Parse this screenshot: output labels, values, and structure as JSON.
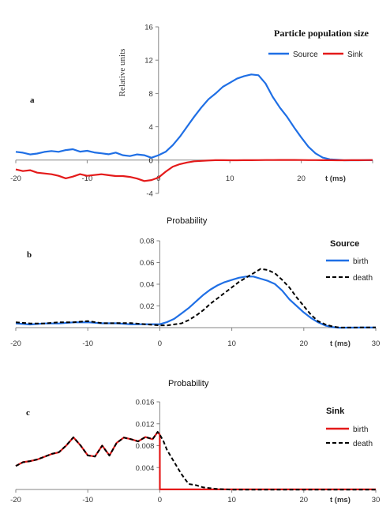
{
  "chart_data": [
    {
      "panel_label": "a",
      "type": "line",
      "title": "Particle population  size",
      "ylabel": "Relative  units",
      "xlabel": "t (ms)",
      "xlim": [
        -20,
        30
      ],
      "ylim": [
        -4,
        16
      ],
      "x_ticks": [
        -20,
        -10,
        0,
        10,
        20,
        30
      ],
      "x_tick_labels": [
        "-20",
        "-10",
        "0",
        "10",
        "20",
        ""
      ],
      "y_ticks": [
        -4,
        0,
        4,
        8,
        12,
        16
      ],
      "legend_position": "top-right",
      "series": [
        {
          "name": "Source",
          "color": "#1f6fe5",
          "style": "solid",
          "x": [
            -20,
            -19,
            -18,
            -17,
            -16,
            -15,
            -14,
            -13,
            -12,
            -11,
            -10,
            -9,
            -8,
            -7,
            -6,
            -5,
            -4,
            -3,
            -2,
            -1,
            0,
            1,
            2,
            3,
            4,
            5,
            6,
            7,
            8,
            9,
            10,
            11,
            12,
            13,
            14,
            15,
            16,
            17,
            18,
            19,
            20,
            21,
            22,
            23,
            24,
            25,
            26,
            27,
            28,
            29,
            30
          ],
          "values": [
            1.0,
            0.9,
            0.7,
            0.8,
            1.0,
            1.1,
            1.0,
            1.2,
            1.3,
            1.0,
            1.1,
            0.9,
            0.8,
            0.7,
            0.9,
            0.6,
            0.5,
            0.7,
            0.6,
            0.3,
            0.6,
            1.0,
            1.8,
            2.8,
            4.0,
            5.2,
            6.3,
            7.3,
            8.0,
            8.8,
            9.3,
            9.8,
            10.1,
            10.3,
            10.2,
            9.2,
            7.6,
            6.3,
            5.2,
            3.9,
            2.7,
            1.6,
            0.8,
            0.3,
            0.1,
            0.05,
            0.0,
            0.0,
            0.0,
            0.0,
            0.0
          ]
        },
        {
          "name": "Sink",
          "color": "#e41a1a",
          "style": "solid",
          "x": [
            -20,
            -19,
            -18,
            -17,
            -16,
            -15,
            -14,
            -13,
            -12,
            -11,
            -10,
            -9,
            -8,
            -7,
            -6,
            -5,
            -4,
            -3,
            -2,
            -1,
            0,
            1,
            2,
            3,
            4,
            5,
            6,
            7,
            8,
            9,
            10,
            11,
            12,
            13,
            14,
            15,
            16,
            17,
            18,
            19,
            20,
            21,
            22,
            23,
            24,
            25,
            26,
            27,
            28,
            29,
            30
          ],
          "values": [
            -1.1,
            -1.3,
            -1.2,
            -1.5,
            -1.6,
            -1.7,
            -1.9,
            -2.2,
            -2.0,
            -1.7,
            -1.9,
            -1.8,
            -1.7,
            -1.8,
            -1.9,
            -1.9,
            -2.0,
            -2.2,
            -2.5,
            -2.4,
            -2.1,
            -1.4,
            -0.8,
            -0.5,
            -0.3,
            -0.15,
            -0.1,
            -0.05,
            0,
            0,
            0,
            0,
            0,
            0,
            0,
            0,
            0,
            0,
            0,
            0,
            0,
            0,
            0,
            0,
            0,
            0,
            0,
            0,
            0,
            0,
            0
          ]
        }
      ]
    },
    {
      "panel_label": "b",
      "type": "line",
      "title": "Probability",
      "legend_title": "Source",
      "xlabel": "t (ms)",
      "xlim": [
        -20,
        30
      ],
      "ylim": [
        0,
        0.08
      ],
      "x_ticks": [
        -20,
        -10,
        0,
        10,
        20,
        30
      ],
      "x_tick_labels": [
        "-20",
        "-10",
        "0",
        "10",
        "20",
        "30"
      ],
      "y_ticks": [
        0.02,
        0.04,
        0.06,
        0.08
      ],
      "y_tick_labels": [
        "0.02",
        "0.04",
        "0.06",
        "0.08"
      ],
      "legend_position": "right",
      "series": [
        {
          "name": "birth",
          "color": "#1f6fe5",
          "style": "solid",
          "x": [
            -20,
            -18,
            -16,
            -14,
            -12,
            -10,
            -8,
            -6,
            -4,
            -2,
            0,
            1,
            2,
            3,
            4,
            5,
            6,
            7,
            8,
            9,
            10,
            11,
            12,
            13,
            14,
            15,
            16,
            17,
            18,
            19,
            20,
            21,
            22,
            23,
            24,
            25,
            26,
            28,
            30
          ],
          "values": [
            0.004,
            0.003,
            0.004,
            0.004,
            0.005,
            0.005,
            0.004,
            0.004,
            0.003,
            0.003,
            0.003,
            0.005,
            0.008,
            0.013,
            0.018,
            0.024,
            0.03,
            0.035,
            0.039,
            0.042,
            0.044,
            0.046,
            0.047,
            0.047,
            0.045,
            0.043,
            0.04,
            0.034,
            0.026,
            0.02,
            0.014,
            0.009,
            0.005,
            0.002,
            0.0005,
            0,
            0,
            0,
            0
          ]
        },
        {
          "name": "death",
          "color": "#000000",
          "style": "dashed",
          "x": [
            -20,
            -18,
            -16,
            -14,
            -12,
            -10,
            -8,
            -6,
            -4,
            -2,
            0,
            1,
            2,
            3,
            4,
            5,
            6,
            7,
            8,
            9,
            10,
            11,
            12,
            13,
            14,
            15,
            16,
            17,
            18,
            19,
            20,
            21,
            22,
            23,
            24,
            25,
            26,
            28,
            30
          ],
          "values": [
            0.005,
            0.004,
            0.004,
            0.005,
            0.005,
            0.006,
            0.004,
            0.004,
            0.004,
            0.003,
            0.002,
            0.002,
            0.003,
            0.004,
            0.007,
            0.011,
            0.016,
            0.022,
            0.027,
            0.032,
            0.037,
            0.042,
            0.046,
            0.05,
            0.054,
            0.053,
            0.05,
            0.044,
            0.037,
            0.028,
            0.02,
            0.012,
            0.006,
            0.003,
            0.001,
            0,
            0,
            0,
            0
          ]
        }
      ]
    },
    {
      "panel_label": "c",
      "type": "line",
      "title": "Probability",
      "legend_title": "Sink",
      "xlabel": "t (ms)",
      "xlim": [
        -20,
        30
      ],
      "ylim": [
        0,
        0.016
      ],
      "x_ticks": [
        -20,
        -10,
        0,
        10,
        20,
        30
      ],
      "x_tick_labels": [
        "-20",
        "-10",
        "0",
        "10",
        "20",
        "30"
      ],
      "y_ticks": [
        0.004,
        0.008,
        0.012,
        0.016
      ],
      "y_tick_labels": [
        "0.004",
        "0.008",
        "0.012",
        "0.016"
      ],
      "legend_position": "right",
      "series": [
        {
          "name": "birth",
          "color": "#e41a1a",
          "style": "solid",
          "x": [
            -20,
            -19,
            -18,
            -17,
            -16,
            -15,
            -14,
            -13,
            -12,
            -11,
            -10,
            -9,
            -8,
            -7,
            -6,
            -5,
            -4,
            -3,
            -2,
            -1,
            -0.3,
            0,
            0.01,
            30
          ],
          "values": [
            0.0043,
            0.005,
            0.0052,
            0.0055,
            0.006,
            0.0065,
            0.0068,
            0.008,
            0.0095,
            0.008,
            0.0062,
            0.006,
            0.008,
            0.0062,
            0.0085,
            0.0095,
            0.0092,
            0.0088,
            0.0096,
            0.0092,
            0.0105,
            0.01,
            0,
            0
          ]
        },
        {
          "name": "death",
          "color": "#000000",
          "style": "dashed",
          "x": [
            -20,
            -19,
            -18,
            -17,
            -16,
            -15,
            -14,
            -13,
            -12,
            -11,
            -10,
            -9,
            -8,
            -7,
            -6,
            -5,
            -4,
            -3,
            -2,
            -1,
            -0.3,
            0,
            0.5,
            1,
            2,
            3,
            4,
            5,
            6,
            8,
            10,
            30
          ],
          "values": [
            0.0043,
            0.005,
            0.0052,
            0.0055,
            0.006,
            0.0065,
            0.0068,
            0.008,
            0.0095,
            0.008,
            0.0062,
            0.006,
            0.008,
            0.0062,
            0.0085,
            0.0095,
            0.0092,
            0.0088,
            0.0096,
            0.0092,
            0.0105,
            0.01,
            0.0088,
            0.0072,
            0.005,
            0.0028,
            0.001,
            0.0008,
            0.0004,
            0.0001,
            0,
            0
          ]
        }
      ]
    }
  ]
}
